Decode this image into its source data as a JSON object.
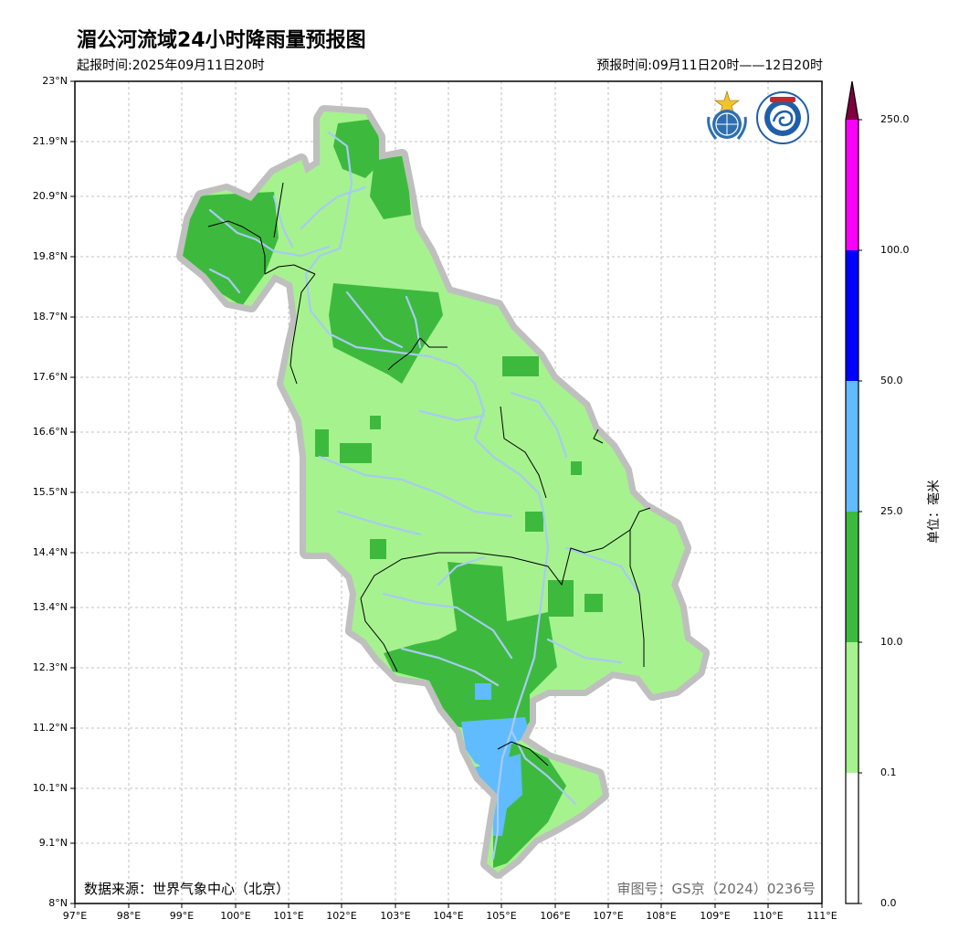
{
  "title": "湄公河流域24小时降雨量预报图",
  "issue_time": "起报时间:2025年09月11日20时",
  "valid_time": "预报时间:09月11日20时——12日20时",
  "source": "数据来源：世界气象中心（北京）",
  "review_number": "审图号：GS京（2024）0236号",
  "lat_labels": [
    "23°N",
    "21.9°N",
    "20.9°N",
    "19.8°N",
    "18.7°N",
    "17.6°N",
    "16.6°N",
    "15.5°N",
    "14.4°N",
    "13.4°N",
    "12.3°N",
    "11.2°N",
    "10.1°N",
    "9.1°N",
    "8°N"
  ],
  "lon_labels": [
    "97°E",
    "98°E",
    "99°E",
    "100°E",
    "101°E",
    "102°E",
    "103°E",
    "104°E",
    "105°E",
    "106°E",
    "107°E",
    "108°E",
    "109°E",
    "110°E",
    "111°E"
  ],
  "colorbar": {
    "unit": "单位：毫米",
    "tick_labels": [
      "0.0",
      "0.1",
      "10.0",
      "25.0",
      "50.0",
      "100.0",
      "250.0"
    ],
    "bins": [
      {
        "range": "0.0–0.1",
        "color": "#ffffff"
      },
      {
        "range": "0.1–10.0",
        "color": "#a6f28f"
      },
      {
        "range": "10.0–25.0",
        "color": "#3dba3d"
      },
      {
        "range": "25.0–50.0",
        "color": "#61bbff"
      },
      {
        "range": "50.0–100.0",
        "color": "#0000ff"
      },
      {
        "range": "100.0–250.0",
        "color": "#fa00fa"
      },
      {
        "range": ">250.0",
        "color": "#800040"
      }
    ]
  },
  "colors": {
    "basin_halo": "#bfbfbf",
    "rivers": "#a7cbf2",
    "boundaries": "#000000",
    "gridlines": "#b0b0b0"
  },
  "logos": [
    "wmo-emblem",
    "cma-emblem"
  ]
}
